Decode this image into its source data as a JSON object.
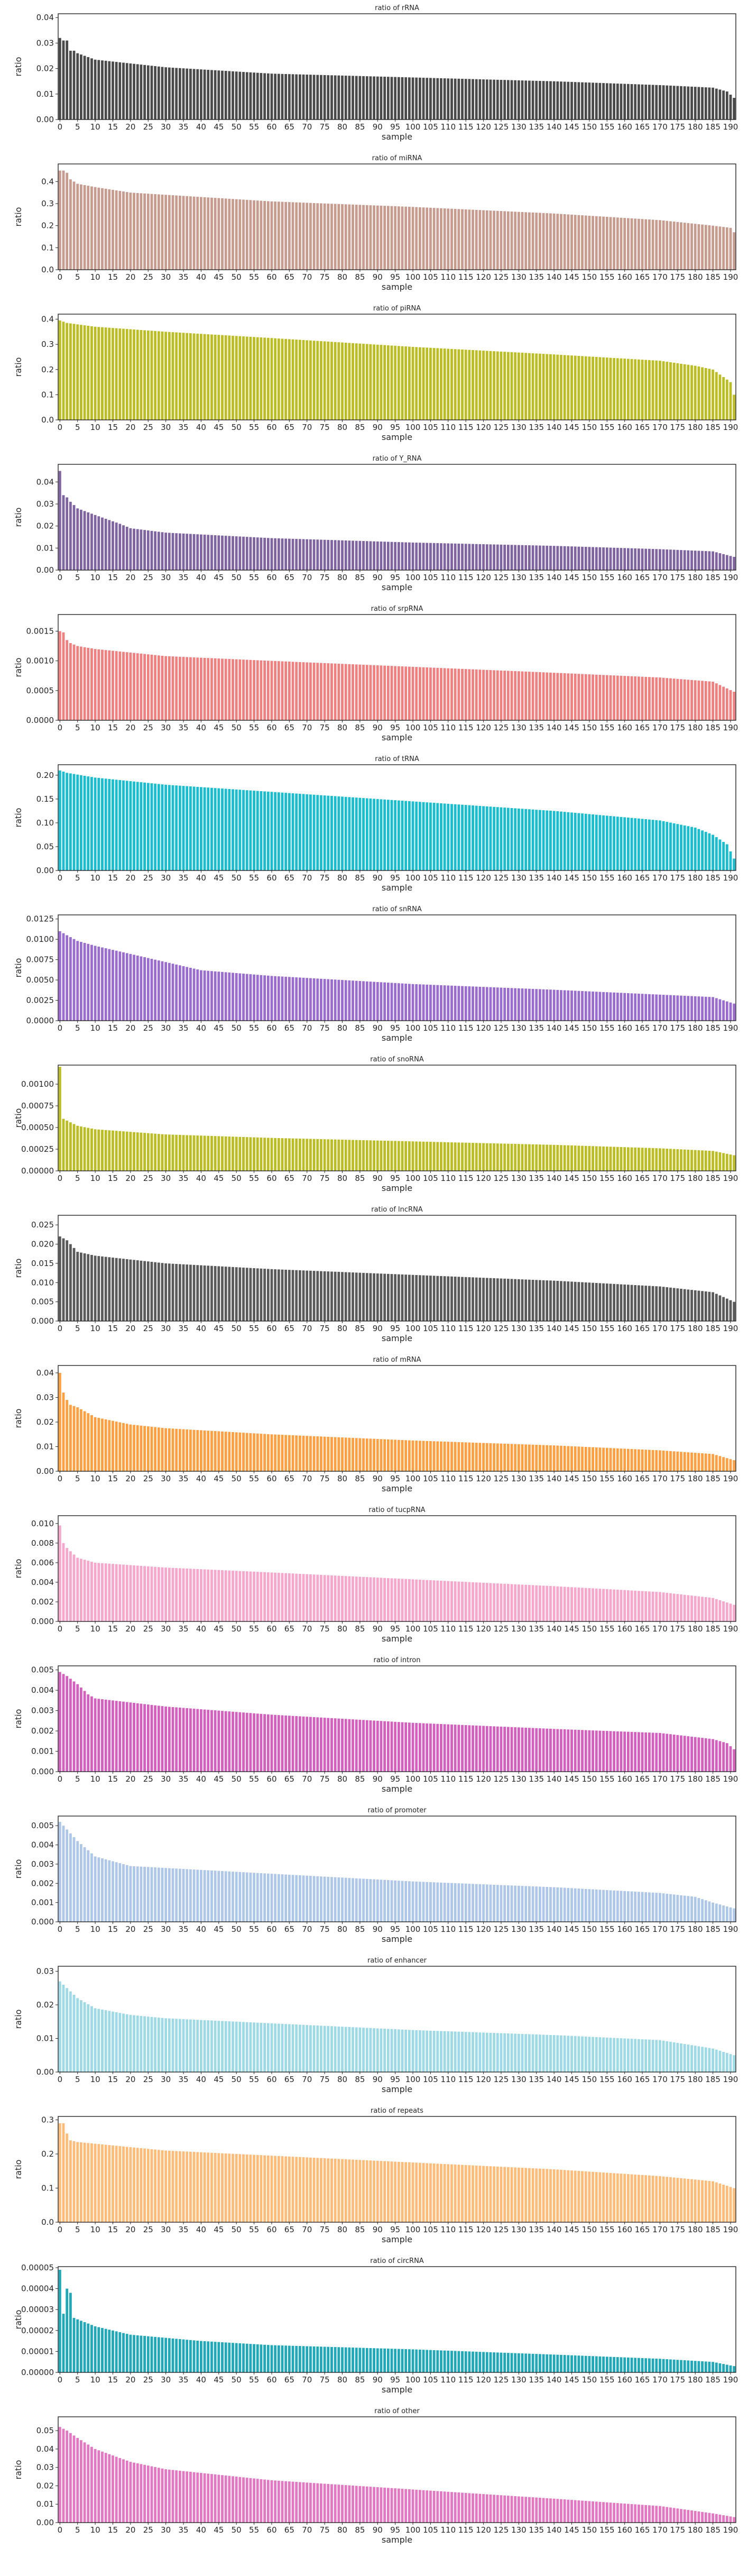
{
  "figure": {
    "n_samples": 192,
    "xlabel": "sample",
    "ylabel": "ratio",
    "xtick_step": 5
  },
  "chart_data": [
    {
      "type": "bar",
      "title": "ratio of rRNA",
      "color": "#4a4a4a",
      "xlabel": "sample",
      "ylabel": "ratio",
      "ylim": [
        0,
        0.0415
      ],
      "yticks": [
        0,
        0.01,
        0.02,
        0.03,
        0.04
      ],
      "ytick_labels": [
        "0.00",
        "0.01",
        "0.02",
        "0.03",
        "0.04"
      ],
      "profile": [
        [
          0,
          0.032
        ],
        [
          1,
          0.031
        ],
        [
          2,
          0.031
        ],
        [
          3,
          0.027
        ],
        [
          4,
          0.027
        ],
        [
          5,
          0.026
        ],
        [
          10,
          0.0235
        ],
        [
          20,
          0.022
        ],
        [
          30,
          0.0205
        ],
        [
          60,
          0.018
        ],
        [
          100,
          0.0165
        ],
        [
          140,
          0.015
        ],
        [
          170,
          0.0135
        ],
        [
          185,
          0.0125
        ],
        [
          189,
          0.011
        ],
        [
          191,
          0.0085
        ]
      ]
    },
    {
      "type": "bar",
      "title": "ratio of miRNA",
      "color": "#c79c8f",
      "xlabel": "sample",
      "ylabel": "ratio",
      "ylim": [
        0,
        0.48
      ],
      "yticks": [
        0,
        0.1,
        0.2,
        0.3,
        0.4
      ],
      "ytick_labels": [
        "0.0",
        "0.1",
        "0.2",
        "0.3",
        "0.4"
      ],
      "profile": [
        [
          0,
          0.45
        ],
        [
          1,
          0.45
        ],
        [
          2,
          0.44
        ],
        [
          3,
          0.41
        ],
        [
          5,
          0.39
        ],
        [
          10,
          0.375
        ],
        [
          20,
          0.35
        ],
        [
          30,
          0.34
        ],
        [
          60,
          0.31
        ],
        [
          100,
          0.285
        ],
        [
          140,
          0.255
        ],
        [
          170,
          0.225
        ],
        [
          185,
          0.2
        ],
        [
          190,
          0.19
        ],
        [
          191,
          0.17
        ]
      ]
    },
    {
      "type": "bar",
      "title": "ratio of piRNA",
      "color": "#bcbd22",
      "xlabel": "sample",
      "ylabel": "ratio",
      "ylim": [
        0,
        0.42
      ],
      "yticks": [
        0,
        0.1,
        0.2,
        0.3,
        0.4
      ],
      "ytick_labels": [
        "0.0",
        "0.1",
        "0.2",
        "0.3",
        "0.4"
      ],
      "profile": [
        [
          0,
          0.395
        ],
        [
          2,
          0.385
        ],
        [
          10,
          0.37
        ],
        [
          30,
          0.35
        ],
        [
          60,
          0.325
        ],
        [
          100,
          0.29
        ],
        [
          140,
          0.26
        ],
        [
          170,
          0.235
        ],
        [
          180,
          0.215
        ],
        [
          185,
          0.2
        ],
        [
          188,
          0.17
        ],
        [
          190,
          0.15
        ],
        [
          191,
          0.1
        ]
      ]
    },
    {
      "type": "bar",
      "title": "ratio of Y_RNA",
      "color": "#8064a2",
      "xlabel": "sample",
      "ylabel": "ratio",
      "ylim": [
        0,
        0.048
      ],
      "yticks": [
        0,
        0.01,
        0.02,
        0.03,
        0.04
      ],
      "ytick_labels": [
        "0.00",
        "0.01",
        "0.02",
        "0.03",
        "0.04"
      ],
      "profile": [
        [
          0,
          0.045
        ],
        [
          1,
          0.034
        ],
        [
          2,
          0.033
        ],
        [
          3,
          0.031
        ],
        [
          5,
          0.028
        ],
        [
          10,
          0.025
        ],
        [
          17,
          0.021
        ],
        [
          20,
          0.019
        ],
        [
          30,
          0.017
        ],
        [
          60,
          0.0145
        ],
        [
          100,
          0.0125
        ],
        [
          140,
          0.011
        ],
        [
          170,
          0.0095
        ],
        [
          185,
          0.0085
        ],
        [
          191,
          0.006
        ]
      ]
    },
    {
      "type": "bar",
      "title": "ratio of srpRNA",
      "color": "#f08080",
      "xlabel": "sample",
      "ylabel": "ratio",
      "ylim": [
        0,
        0.00178
      ],
      "yticks": [
        0,
        0.0005,
        0.001,
        0.0015
      ],
      "ytick_labels": [
        "0.0000",
        "0.0005",
        "0.0010",
        "0.0015"
      ],
      "profile": [
        [
          0,
          0.0015
        ],
        [
          1,
          0.00148
        ],
        [
          2,
          0.00135
        ],
        [
          3,
          0.0013
        ],
        [
          5,
          0.00125
        ],
        [
          10,
          0.0012
        ],
        [
          30,
          0.00108
        ],
        [
          60,
          0.001
        ],
        [
          100,
          0.0009
        ],
        [
          140,
          0.0008
        ],
        [
          170,
          0.00072
        ],
        [
          185,
          0.00065
        ],
        [
          191,
          0.00048
        ]
      ]
    },
    {
      "type": "bar",
      "title": "ratio of tRNA",
      "color": "#17becf",
      "xlabel": "sample",
      "ylabel": "ratio",
      "ylim": [
        0,
        0.222
      ],
      "yticks": [
        0,
        0.05,
        0.1,
        0.15,
        0.2
      ],
      "ytick_labels": [
        "0.00",
        "0.05",
        "0.10",
        "0.15",
        "0.20"
      ],
      "profile": [
        [
          0,
          0.21
        ],
        [
          2,
          0.205
        ],
        [
          10,
          0.195
        ],
        [
          30,
          0.18
        ],
        [
          60,
          0.165
        ],
        [
          100,
          0.145
        ],
        [
          140,
          0.125
        ],
        [
          170,
          0.105
        ],
        [
          180,
          0.09
        ],
        [
          185,
          0.075
        ],
        [
          189,
          0.055
        ],
        [
          191,
          0.025
        ]
      ]
    },
    {
      "type": "bar",
      "title": "ratio of snRNA",
      "color": "#9a6ccf",
      "xlabel": "sample",
      "ylabel": "ratio",
      "ylim": [
        0,
        0.013
      ],
      "yticks": [
        0,
        0.0025,
        0.005,
        0.0075,
        0.01,
        0.0125
      ],
      "ytick_labels": [
        "0.0000",
        "0.0025",
        "0.0050",
        "0.0075",
        "0.0100",
        "0.0125"
      ],
      "profile": [
        [
          0,
          0.011
        ],
        [
          2,
          0.0105
        ],
        [
          5,
          0.0098
        ],
        [
          10,
          0.0092
        ],
        [
          20,
          0.0082
        ],
        [
          30,
          0.0072
        ],
        [
          40,
          0.0062
        ],
        [
          60,
          0.0055
        ],
        [
          100,
          0.0045
        ],
        [
          140,
          0.0038
        ],
        [
          170,
          0.0032
        ],
        [
          185,
          0.0029
        ],
        [
          191,
          0.0021
        ]
      ]
    },
    {
      "type": "bar",
      "title": "ratio of snoRNA",
      "color": "#bcbd22",
      "xlabel": "sample",
      "ylabel": "ratio",
      "ylim": [
        0,
        0.00122
      ],
      "yticks": [
        0,
        0.00025,
        0.0005,
        0.00075,
        0.001
      ],
      "ytick_labels": [
        "0.00000",
        "0.00025",
        "0.00050",
        "0.00075",
        "0.00100"
      ],
      "profile": [
        [
          0,
          0.0012
        ],
        [
          1,
          0.0006
        ],
        [
          5,
          0.00052
        ],
        [
          10,
          0.00048
        ],
        [
          30,
          0.00042
        ],
        [
          60,
          0.00038
        ],
        [
          100,
          0.00034
        ],
        [
          140,
          0.0003
        ],
        [
          170,
          0.00026
        ],
        [
          185,
          0.00023
        ],
        [
          191,
          0.00018
        ]
      ]
    },
    {
      "type": "bar",
      "title": "ratio of lncRNA",
      "color": "#5a5a5a",
      "xlabel": "sample",
      "ylabel": "ratio",
      "ylim": [
        0,
        0.0275
      ],
      "yticks": [
        0,
        0.005,
        0.01,
        0.015,
        0.02,
        0.025
      ],
      "ytick_labels": [
        "0.000",
        "0.005",
        "0.010",
        "0.015",
        "0.020",
        "0.025"
      ],
      "profile": [
        [
          0,
          0.022
        ],
        [
          1,
          0.0215
        ],
        [
          2,
          0.021
        ],
        [
          3,
          0.02
        ],
        [
          5,
          0.018
        ],
        [
          10,
          0.017
        ],
        [
          30,
          0.015
        ],
        [
          60,
          0.0135
        ],
        [
          100,
          0.012
        ],
        [
          140,
          0.0105
        ],
        [
          170,
          0.009
        ],
        [
          185,
          0.0075
        ],
        [
          191,
          0.005
        ]
      ]
    },
    {
      "type": "bar",
      "title": "ratio of mRNA",
      "color": "#ff9f40",
      "xlabel": "sample",
      "ylabel": "ratio",
      "ylim": [
        0,
        0.043
      ],
      "yticks": [
        0,
        0.01,
        0.02,
        0.03,
        0.04
      ],
      "ytick_labels": [
        "0.00",
        "0.01",
        "0.02",
        "0.03",
        "0.04"
      ],
      "profile": [
        [
          0,
          0.04
        ],
        [
          1,
          0.032
        ],
        [
          2,
          0.029
        ],
        [
          3,
          0.027
        ],
        [
          5,
          0.026
        ],
        [
          10,
          0.022
        ],
        [
          20,
          0.019
        ],
        [
          30,
          0.0175
        ],
        [
          60,
          0.015
        ],
        [
          100,
          0.0125
        ],
        [
          140,
          0.0105
        ],
        [
          170,
          0.0085
        ],
        [
          185,
          0.007
        ],
        [
          191,
          0.0045
        ]
      ]
    },
    {
      "type": "bar",
      "title": "ratio of tucpRNA",
      "color": "#f7a6cc",
      "xlabel": "sample",
      "ylabel": "ratio",
      "ylim": [
        0,
        0.0108
      ],
      "yticks": [
        0,
        0.002,
        0.004,
        0.006,
        0.008,
        0.01
      ],
      "ytick_labels": [
        "0.000",
        "0.002",
        "0.004",
        "0.006",
        "0.008",
        "0.010"
      ],
      "profile": [
        [
          0,
          0.0098
        ],
        [
          1,
          0.008
        ],
        [
          2,
          0.0075
        ],
        [
          5,
          0.0065
        ],
        [
          10,
          0.006
        ],
        [
          30,
          0.0055
        ],
        [
          60,
          0.005
        ],
        [
          100,
          0.0043
        ],
        [
          140,
          0.0036
        ],
        [
          170,
          0.003
        ],
        [
          185,
          0.0024
        ],
        [
          191,
          0.0017
        ]
      ]
    },
    {
      "type": "bar",
      "title": "ratio of intron",
      "color": "#d45fbf",
      "xlabel": "sample",
      "ylabel": "ratio",
      "ylim": [
        0,
        0.0052
      ],
      "yticks": [
        0,
        0.001,
        0.002,
        0.003,
        0.004,
        0.005
      ],
      "ytick_labels": [
        "0.000",
        "0.001",
        "0.002",
        "0.003",
        "0.004",
        "0.005"
      ],
      "profile": [
        [
          0,
          0.0049
        ],
        [
          2,
          0.0047
        ],
        [
          5,
          0.0043
        ],
        [
          8,
          0.0038
        ],
        [
          10,
          0.0036
        ],
        [
          30,
          0.0032
        ],
        [
          60,
          0.0028
        ],
        [
          100,
          0.0024
        ],
        [
          140,
          0.0021
        ],
        [
          170,
          0.0019
        ],
        [
          185,
          0.0016
        ],
        [
          189,
          0.0014
        ],
        [
          191,
          0.0011
        ]
      ]
    },
    {
      "type": "bar",
      "title": "ratio of promoter",
      "color": "#aec7e8",
      "xlabel": "sample",
      "ylabel": "ratio",
      "ylim": [
        0,
        0.0055
      ],
      "yticks": [
        0,
        0.001,
        0.002,
        0.003,
        0.004,
        0.005
      ],
      "ytick_labels": [
        "0.000",
        "0.001",
        "0.002",
        "0.003",
        "0.004",
        "0.005"
      ],
      "profile": [
        [
          0,
          0.0052
        ],
        [
          2,
          0.0048
        ],
        [
          5,
          0.0042
        ],
        [
          10,
          0.0034
        ],
        [
          20,
          0.0029
        ],
        [
          30,
          0.0028
        ],
        [
          60,
          0.0025
        ],
        [
          100,
          0.0021
        ],
        [
          140,
          0.0018
        ],
        [
          170,
          0.0015
        ],
        [
          180,
          0.0013
        ],
        [
          185,
          0.001
        ],
        [
          191,
          0.0007
        ]
      ]
    },
    {
      "type": "bar",
      "title": "ratio of enhancer",
      "color": "#9edae5",
      "xlabel": "sample",
      "ylabel": "ratio",
      "ylim": [
        0,
        0.0315
      ],
      "yticks": [
        0,
        0.01,
        0.02,
        0.03
      ],
      "ytick_labels": [
        "0.00",
        "0.01",
        "0.02",
        "0.03"
      ],
      "profile": [
        [
          0,
          0.027
        ],
        [
          1,
          0.026
        ],
        [
          3,
          0.024
        ],
        [
          5,
          0.022
        ],
        [
          10,
          0.019
        ],
        [
          20,
          0.017
        ],
        [
          30,
          0.016
        ],
        [
          60,
          0.0145
        ],
        [
          100,
          0.0125
        ],
        [
          140,
          0.011
        ],
        [
          170,
          0.0095
        ],
        [
          185,
          0.007
        ],
        [
          191,
          0.005
        ]
      ]
    },
    {
      "type": "bar",
      "title": "ratio of repeats",
      "color": "#ffbb78",
      "xlabel": "sample",
      "ylabel": "ratio",
      "ylim": [
        0,
        0.31
      ],
      "yticks": [
        0,
        0.1,
        0.2,
        0.3
      ],
      "ytick_labels": [
        "0.0",
        "0.1",
        "0.2",
        "0.3"
      ],
      "profile": [
        [
          0,
          0.29
        ],
        [
          1,
          0.29
        ],
        [
          2,
          0.26
        ],
        [
          3,
          0.24
        ],
        [
          5,
          0.235
        ],
        [
          10,
          0.23
        ],
        [
          30,
          0.21
        ],
        [
          60,
          0.195
        ],
        [
          100,
          0.175
        ],
        [
          140,
          0.155
        ],
        [
          170,
          0.135
        ],
        [
          185,
          0.12
        ],
        [
          191,
          0.1
        ]
      ]
    },
    {
      "type": "bar",
      "title": "ratio of circRNA",
      "color": "#1fa9b8",
      "xlabel": "sample",
      "ylabel": "ratio",
      "ylim": [
        0,
        5.05e-05
      ],
      "yticks": [
        0,
        1e-05,
        2e-05,
        3e-05,
        4e-05,
        5e-05
      ],
      "ytick_labels": [
        "0.00000",
        "0.00001",
        "0.00002",
        "0.00003",
        "0.00004",
        "0.00005"
      ],
      "profile": [
        [
          0,
          4.9e-05
        ],
        [
          1,
          2.8e-05
        ],
        [
          2,
          4e-05
        ],
        [
          3,
          3.8e-05
        ],
        [
          4,
          2.6e-05
        ],
        [
          10,
          2.2e-05
        ],
        [
          20,
          1.8e-05
        ],
        [
          40,
          1.5e-05
        ],
        [
          60,
          1.3e-05
        ],
        [
          100,
          1.1e-05
        ],
        [
          140,
          8.5e-06
        ],
        [
          170,
          6.5e-06
        ],
        [
          185,
          5e-06
        ],
        [
          191,
          3e-06
        ]
      ]
    },
    {
      "type": "bar",
      "title": "ratio of other",
      "color": "#e377c2",
      "xlabel": "sample",
      "ylabel": "ratio",
      "ylim": [
        0,
        0.0575
      ],
      "yticks": [
        0,
        0.01,
        0.02,
        0.03,
        0.04,
        0.05
      ],
      "ytick_labels": [
        "0.00",
        "0.01",
        "0.02",
        "0.03",
        "0.04",
        "0.05"
      ],
      "profile": [
        [
          0,
          0.052
        ],
        [
          1,
          0.051
        ],
        [
          2,
          0.05
        ],
        [
          5,
          0.046
        ],
        [
          10,
          0.04
        ],
        [
          20,
          0.033
        ],
        [
          30,
          0.029
        ],
        [
          60,
          0.023
        ],
        [
          100,
          0.018
        ],
        [
          140,
          0.013
        ],
        [
          170,
          0.009
        ],
        [
          185,
          0.005
        ],
        [
          191,
          0.003
        ]
      ]
    }
  ]
}
